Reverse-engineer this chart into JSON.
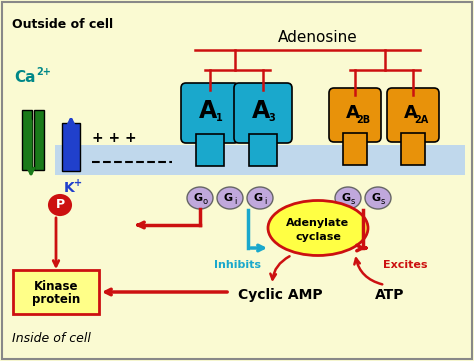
{
  "background_color": "#FAFAD2",
  "border_color": "#888888",
  "title_adenosine": "Adenosine",
  "label_outside": "Outside of cell",
  "label_inside": "Inside of cell",
  "label_ca": "Ca",
  "label_ca_super": "2+",
  "label_k": "K",
  "label_k_super": "+",
  "label_p": "P",
  "label_A1": "A",
  "label_A1_sub": "1",
  "label_A3": "A",
  "label_A3_sub": "3",
  "label_A2B": "A",
  "label_A2B_sub": "2B",
  "label_A2A": "A",
  "label_A2A_sub": "2A",
  "label_Go": "G",
  "label_Go_sub": "o",
  "label_Gi1": "G",
  "label_Gi1_sub": "i",
  "label_Gi2": "G",
  "label_Gi2_sub": "i",
  "label_Gs1": "G",
  "label_Gs1_sub": "s",
  "label_Gs2": "G",
  "label_Gs2_sub": "s",
  "label_inhibits": "Inhibits",
  "label_excites": "Excites",
  "label_adenylate_line1": "Adenylate",
  "label_adenylate_line2": "cyclase",
  "label_cyclic_amp": "Cyclic AMP",
  "label_atp": "ATP",
  "label_kinase_line1": "Kinase",
  "label_kinase_line2": "protein",
  "color_cyan": "#1AA8CC",
  "color_orange": "#E8920A",
  "color_green": "#1A7A1A",
  "color_red": "#CC1010",
  "color_blue": "#2040CC",
  "color_lavender": "#C0A8DC",
  "color_teal": "#008888",
  "color_yellow_box": "#FFFF88",
  "color_yellow_ellipse": "#FFFF44",
  "color_membrane": "#C0D8EC",
  "plus_signs": "+ + +",
  "minus_sign": "- - -"
}
